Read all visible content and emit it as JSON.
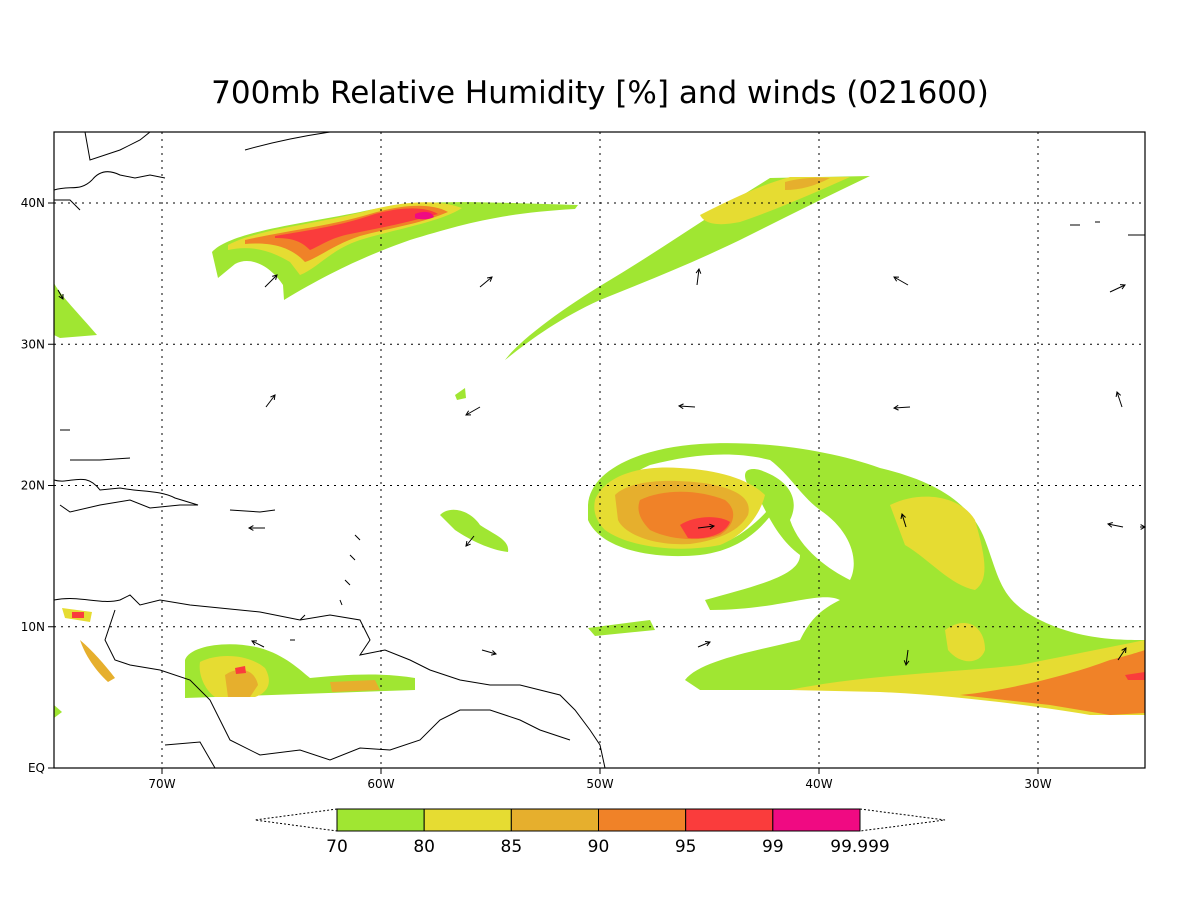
{
  "header": {
    "title": "700mb Relative Humidity [%] and winds (021600)"
  },
  "axes": {
    "lon_labels": [
      "70W",
      "60W",
      "50W",
      "40W",
      "30W"
    ],
    "lat_labels": [
      "40N",
      "30N",
      "20N",
      "10N",
      "EQ"
    ]
  },
  "colorbar": {
    "labels": [
      "70",
      "80",
      "85",
      "90",
      "95",
      "99",
      "99.999"
    ],
    "colors": [
      "#a0e632",
      "#e6dc32",
      "#e6af2d",
      "#f08228",
      "#fa3c3c",
      "#f00a82"
    ]
  }
}
